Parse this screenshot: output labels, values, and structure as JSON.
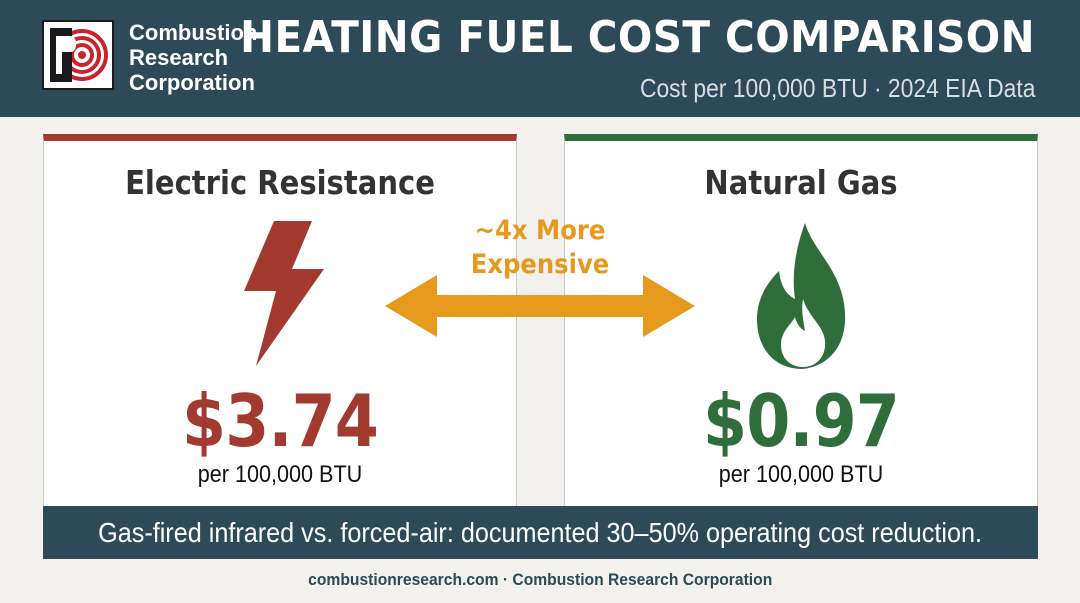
{
  "header": {
    "logo_lines": [
      "Combustion",
      "Research",
      "Corporation"
    ],
    "logo_icon": "concentric-rings-logo-icon",
    "title": "HEATING FUEL COST COMPARISON",
    "subtitle": "Cost per 100,000 BTU · 2024 EIA Data"
  },
  "comparison": {
    "left": {
      "name": "Electric Resistance",
      "icon": "lightning-bolt-icon",
      "price": "$3.74",
      "unit": "per 100,000 BTU",
      "accent_color": "#a33a30"
    },
    "right": {
      "name": "Natural Gas",
      "icon": "flame-icon",
      "price": "$0.97",
      "unit": "per 100,000 BTU",
      "accent_color": "#2f6e3a"
    },
    "callout_lines": [
      "~4x More",
      "Expensive"
    ],
    "arrow_icon": "double-arrow-icon",
    "arrow_color": "#e59a1e"
  },
  "banner": {
    "text": "Gas-fired infrared vs. forced-air: documented 30–50% operating cost reduction."
  },
  "footer": {
    "text": "combustionresearch.com · Combustion Research Corporation"
  },
  "colors": {
    "header_bg": "#2d4a58",
    "page_bg": "#f2f1ed"
  }
}
